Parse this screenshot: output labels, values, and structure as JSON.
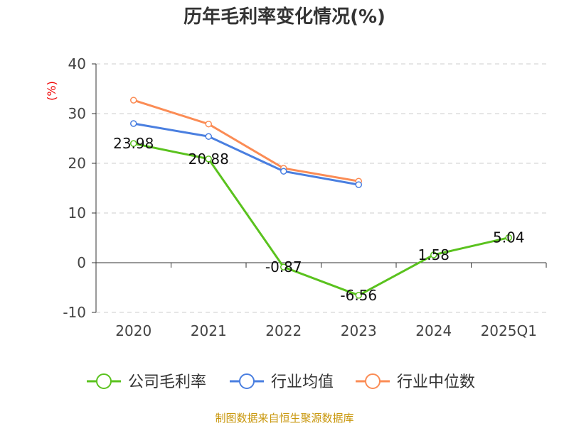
{
  "chart_data": {
    "type": "line",
    "title": "历年毛利率变化情况(%)",
    "ylabel": "(%)",
    "xlabel": "",
    "ylim": [
      -10,
      40
    ],
    "yticks": [
      -10,
      0,
      10,
      20,
      30,
      40
    ],
    "grid": true,
    "legend_position": "bottom",
    "categories": [
      "2020",
      "2021",
      "2022",
      "2023",
      "2024",
      "2025Q1"
    ],
    "series": [
      {
        "name": "公司毛利率",
        "color": "#5ac21e",
        "values": [
          23.98,
          20.88,
          -0.87,
          -6.56,
          1.58,
          5.04
        ],
        "labels": true
      },
      {
        "name": "行业均值",
        "color": "#4a7fe0",
        "values": [
          28.0,
          25.4,
          18.4,
          15.7,
          null,
          null
        ],
        "labels": false
      },
      {
        "name": "行业中位数",
        "color": "#fb8c55",
        "values": [
          32.7,
          27.9,
          19.0,
          16.4,
          null,
          null
        ],
        "labels": false
      }
    ],
    "source": "制图数据来自恒生聚源数据库"
  }
}
